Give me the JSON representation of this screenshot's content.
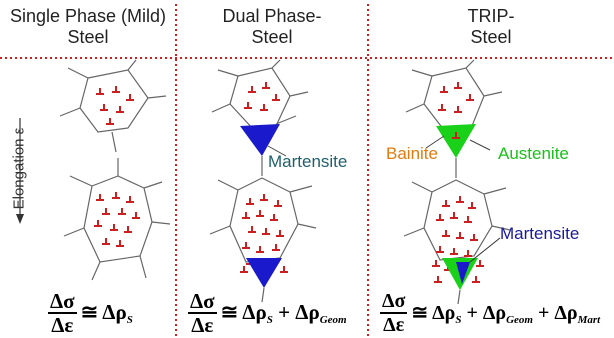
{
  "columns": [
    {
      "header_line1": "Single Phase (Mild)",
      "header_line2": "Steel"
    },
    {
      "header_line1": "Dual Phase-",
      "header_line2": "Steel"
    },
    {
      "header_line1": "TRIP-",
      "header_line2": "Steel"
    }
  ],
  "axis": {
    "label": "Elongation ε"
  },
  "labels": {
    "martensite_dual": "Martensite",
    "bainite": "Bainite",
    "austenite": "Austenite",
    "martensite_trip": "Martensite"
  },
  "equations": {
    "lhs_num": "Δσ",
    "lhs_den": "Δε",
    "eq1": "≅ Δρ",
    "eq1_sub": "S",
    "eq2": "≅ Δρ",
    "eq2_sub1": "S",
    "eq2_mid": " + Δρ",
    "eq2_sub2": "Geom",
    "eq3": "≅ Δρ",
    "eq3_sub1": "S",
    "eq3_mid": " + Δρ",
    "eq3_sub2": "Geom",
    "eq3_end": " + Δρ",
    "eq3_sub3": "Mart"
  },
  "colors": {
    "divider": "#cc1f1f",
    "dislocation": "#cc1f1f",
    "martensite": "#1a1acc",
    "bainite": "#e07b10",
    "austenite": "#19d119",
    "grain": "#666666",
    "martensite_label_dual": "#1f5f6a"
  }
}
